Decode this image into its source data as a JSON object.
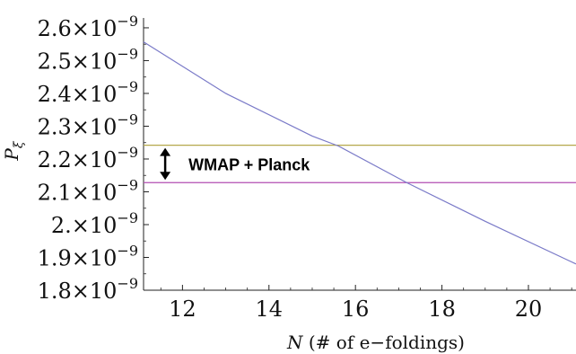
{
  "chart_data": {
    "type": "line",
    "xlabel_symbol": "N",
    "xlabel_text": "(# of e−foldings)",
    "ylabel_symbol": "P",
    "ylabel_subscript": "ξ",
    "xlim": [
      11.1,
      21.1
    ],
    "ylim": [
      1.8e-09,
      2.63e-09
    ],
    "x_ticks": [
      12,
      14,
      16,
      18,
      20
    ],
    "y_ticks": [
      {
        "value": 1.8e-09,
        "mantissa": "1.8",
        "exponent": "−9"
      },
      {
        "value": 1.9e-09,
        "mantissa": "1.9",
        "exponent": "−9"
      },
      {
        "value": 2e-09,
        "mantissa": "2.",
        "exponent": "−9"
      },
      {
        "value": 2.1e-09,
        "mantissa": "2.1",
        "exponent": "−9"
      },
      {
        "value": 2.2e-09,
        "mantissa": "2.2",
        "exponent": "−9"
      },
      {
        "value": 2.3e-09,
        "mantissa": "2.3",
        "exponent": "−9"
      },
      {
        "value": 2.4e-09,
        "mantissa": "2.4",
        "exponent": "−9"
      },
      {
        "value": 2.5e-09,
        "mantissa": "2.5",
        "exponent": "−9"
      },
      {
        "value": 2.6e-09,
        "mantissa": "2.6",
        "exponent": "−9"
      }
    ],
    "series": [
      {
        "color": "#7a7ac8",
        "x": [
          11.1,
          13,
          15,
          15.6,
          17,
          17.2,
          19,
          21.1
        ],
        "y": [
          2.557e-09,
          2.4e-09,
          2.27e-09,
          2.24e-09,
          2.141e-09,
          2.127e-09,
          2.01e-09,
          1.88e-09
        ]
      }
    ],
    "hlines": [
      {
        "y": 2.242e-09,
        "color": "#b5a84a"
      },
      {
        "y": 2.128e-09,
        "color": "#b34eb3"
      }
    ],
    "annotation": {
      "text": "WMAP + Planck",
      "x": 11.6,
      "y_top": 2.242e-09,
      "y_bottom": 2.128e-09
    },
    "grid": false
  }
}
